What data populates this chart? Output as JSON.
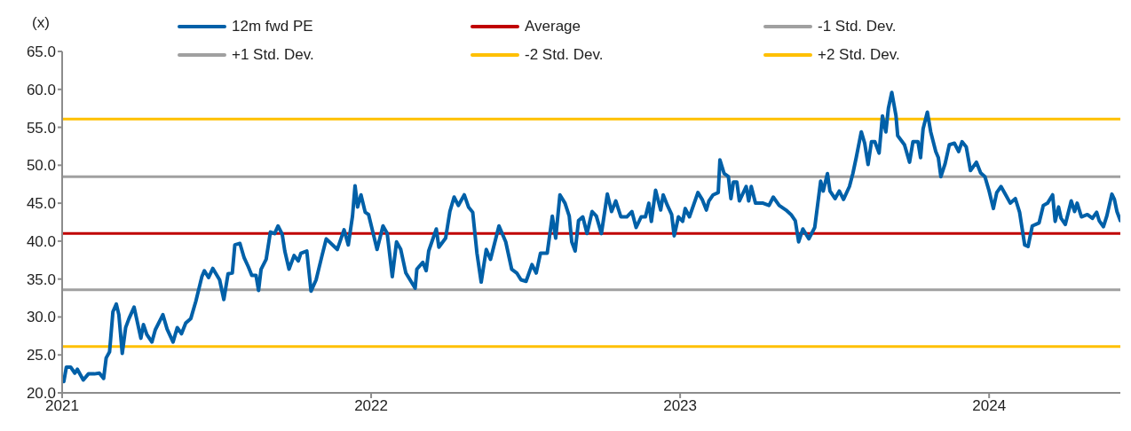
{
  "chart_data": {
    "type": "line",
    "ylabel": "(x)",
    "legend": "top",
    "xlim": [
      "2021-01-01",
      "2024-06-04"
    ],
    "xticks": [
      "2021",
      "2022",
      "2023",
      "2024"
    ],
    "ylim": [
      20,
      65
    ],
    "yticks": [
      {
        "value": 20,
        "label": "20.0"
      },
      {
        "value": 25,
        "label": "25.0"
      },
      {
        "value": 30,
        "label": "30.0"
      },
      {
        "value": 35,
        "label": "35.0"
      },
      {
        "value": 40,
        "label": "40.0"
      },
      {
        "value": 45,
        "label": "45.0"
      },
      {
        "value": 50,
        "label": "50.0"
      },
      {
        "value": 55,
        "label": "55.0"
      },
      {
        "value": 60,
        "label": "60.0"
      },
      {
        "value": 65,
        "label": "65.0"
      }
    ],
    "series": [
      {
        "name": "12m fwd PE",
        "color": "#0060a8",
        "x": [
          "2021-01-03",
          "2021-01-06",
          "2021-01-11",
          "2021-01-16",
          "2021-01-19",
          "2021-01-26",
          "2021-02-01",
          "2021-02-08",
          "2021-02-14",
          "2021-02-19",
          "2021-02-22",
          "2021-02-26",
          "2021-03-02",
          "2021-03-06",
          "2021-03-09",
          "2021-03-13",
          "2021-03-17",
          "2021-03-21",
          "2021-03-27",
          "2021-04-04",
          "2021-04-07",
          "2021-04-11",
          "2021-04-17",
          "2021-04-21",
          "2021-04-30",
          "2021-05-05",
          "2021-05-12",
          "2021-05-17",
          "2021-05-22",
          "2021-05-27",
          "2021-06-02",
          "2021-06-08",
          "2021-06-15",
          "2021-06-18",
          "2021-06-23",
          "2021-06-28",
          "2021-07-06",
          "2021-07-11",
          "2021-07-16",
          "2021-07-21",
          "2021-07-24",
          "2021-07-30",
          "2021-08-04",
          "2021-08-09",
          "2021-08-13",
          "2021-08-18",
          "2021-08-21",
          "2021-08-24",
          "2021-08-30",
          "2021-09-04",
          "2021-09-09",
          "2021-09-13",
          "2021-09-18",
          "2021-09-21",
          "2021-09-26",
          "2021-10-02",
          "2021-10-07",
          "2021-10-10",
          "2021-10-17",
          "2021-10-22",
          "2021-10-28",
          "2021-11-04",
          "2021-11-09",
          "2021-11-22",
          "2021-11-30",
          "2021-12-05",
          "2021-12-10",
          "2021-12-13",
          "2021-12-16",
          "2021-12-20",
          "2021-12-25",
          "2021-12-29",
          "2022-01-03",
          "2022-01-08",
          "2022-01-15",
          "2022-01-20",
          "2022-01-26",
          "2022-01-31",
          "2022-02-05",
          "2022-02-11",
          "2022-02-22",
          "2022-02-24",
          "2022-03-03",
          "2022-03-07",
          "2022-03-10",
          "2022-03-19",
          "2022-03-22",
          "2022-03-30",
          "2022-04-04",
          "2022-04-09",
          "2022-04-14",
          "2022-04-21",
          "2022-04-26",
          "2022-05-01",
          "2022-05-06",
          "2022-05-11",
          "2022-05-17",
          "2022-05-22",
          "2022-06-01",
          "2022-06-09",
          "2022-06-16",
          "2022-06-22",
          "2022-06-27",
          "2022-07-03",
          "2022-07-10",
          "2022-07-15",
          "2022-07-20",
          "2022-07-28",
          "2022-08-03",
          "2022-08-07",
          "2022-08-12",
          "2022-08-18",
          "2022-08-23",
          "2022-08-26",
          "2022-08-30",
          "2022-09-03",
          "2022-09-08",
          "2022-09-13",
          "2022-09-19",
          "2022-09-24",
          "2022-09-30",
          "2022-10-07",
          "2022-10-12",
          "2022-10-17",
          "2022-10-23",
          "2022-10-30",
          "2022-11-05",
          "2022-11-10",
          "2022-11-16",
          "2022-11-21",
          "2022-11-25",
          "2022-11-28",
          "2022-12-03",
          "2022-12-09",
          "2022-12-12",
          "2022-12-17",
          "2022-12-22",
          "2022-12-25",
          "2022-12-30",
          "2023-01-04",
          "2023-01-07",
          "2023-01-12",
          "2023-01-22",
          "2023-01-27",
          "2023-02-01",
          "2023-02-04",
          "2023-02-09",
          "2023-02-15",
          "2023-02-17",
          "2023-02-22",
          "2023-02-27",
          "2023-03-02",
          "2023-03-05",
          "2023-03-09",
          "2023-03-12",
          "2023-03-20",
          "2023-03-23",
          "2023-03-26",
          "2023-03-31",
          "2023-04-09",
          "2023-04-16",
          "2023-04-21",
          "2023-04-28",
          "2023-05-06",
          "2023-05-12",
          "2023-05-17",
          "2023-05-21",
          "2023-05-26",
          "2023-06-02",
          "2023-06-09",
          "2023-06-16",
          "2023-06-19",
          "2023-06-24",
          "2023-06-27",
          "2023-07-03",
          "2023-07-08",
          "2023-07-13",
          "2023-07-20",
          "2023-07-24",
          "2023-07-28",
          "2023-08-03",
          "2023-08-07",
          "2023-08-11",
          "2023-08-15",
          "2023-08-19",
          "2023-08-24",
          "2023-08-28",
          "2023-09-01",
          "2023-09-04",
          "2023-09-08",
          "2023-09-13",
          "2023-09-15",
          "2023-09-23",
          "2023-09-29",
          "2023-10-03",
          "2023-10-09",
          "2023-10-12",
          "2023-10-15",
          "2023-10-20",
          "2023-10-24",
          "2023-10-30",
          "2023-11-02",
          "2023-11-05",
          "2023-11-10",
          "2023-11-15",
          "2023-11-21",
          "2023-11-26",
          "2023-11-30",
          "2023-12-05",
          "2023-12-10",
          "2023-12-17",
          "2023-12-22",
          "2023-12-27",
          "2024-01-01",
          "2024-01-06",
          "2024-01-10",
          "2024-01-15",
          "2024-01-20",
          "2024-01-26",
          "2024-02-01",
          "2024-02-06",
          "2024-02-12",
          "2024-02-16",
          "2024-02-21",
          "2024-02-29",
          "2024-03-05",
          "2024-03-10",
          "2024-03-16",
          "2024-03-19",
          "2024-03-23",
          "2024-03-26",
          "2024-03-31",
          "2024-04-07",
          "2024-04-11",
          "2024-04-14",
          "2024-04-19",
          "2024-04-26",
          "2024-05-02",
          "2024-05-07",
          "2024-05-10",
          "2024-05-15",
          "2024-05-19",
          "2024-05-25",
          "2024-05-28",
          "2024-05-31",
          "2024-06-04"
        ],
        "values": [
          21.5,
          23.4,
          23.4,
          22.6,
          23.1,
          21.7,
          22.5,
          22.5,
          22.6,
          21.9,
          24.6,
          25.4,
          30.7,
          31.7,
          30.3,
          25.2,
          28.6,
          29.8,
          31.3,
          27.2,
          29.0,
          27.7,
          26.7,
          28.3,
          30.3,
          28.4,
          26.7,
          28.6,
          27.8,
          29.2,
          29.8,
          32.1,
          35.3,
          36.1,
          35.2,
          36.4,
          34.9,
          32.3,
          35.7,
          35.8,
          39.5,
          39.7,
          37.8,
          36.6,
          35.5,
          35.5,
          33.5,
          36.3,
          37.6,
          41.2,
          41.0,
          42.0,
          40.9,
          38.7,
          36.3,
          38.1,
          37.4,
          38.4,
          38.7,
          33.4,
          34.9,
          38.1,
          40.3,
          38.9,
          41.5,
          39.5,
          43.3,
          47.3,
          44.5,
          46.1,
          43.8,
          43.5,
          41.2,
          38.9,
          42.0,
          41.0,
          35.3,
          39.9,
          38.9,
          35.8,
          33.8,
          36.3,
          37.2,
          36.1,
          38.7,
          41.6,
          39.2,
          40.4,
          43.9,
          45.8,
          44.7,
          46.1,
          44.5,
          43.8,
          38.4,
          34.6,
          38.9,
          37.6,
          42.0,
          39.9,
          36.3,
          35.8,
          34.9,
          34.7,
          36.9,
          35.8,
          38.4,
          38.4,
          43.3,
          40.4,
          46.1,
          45.0,
          43.3,
          39.9,
          38.7,
          42.7,
          43.2,
          41.0,
          43.9,
          43.3,
          41.0,
          46.2,
          43.9,
          45.3,
          43.2,
          43.2,
          43.9,
          41.8,
          43.2,
          43.2,
          45.0,
          42.6,
          46.7,
          44.1,
          46.1,
          44.7,
          43.5,
          40.7,
          43.2,
          42.6,
          44.3,
          43.2,
          46.4,
          45.5,
          44.1,
          45.3,
          46.1,
          46.4,
          50.7,
          48.9,
          48.5,
          45.6,
          47.8,
          47.8,
          45.3,
          47.2,
          45.3,
          47.2,
          45.0,
          45.0,
          44.7,
          45.8,
          44.7,
          44.1,
          43.5,
          42.7,
          39.9,
          41.6,
          40.3,
          41.8,
          47.9,
          46.6,
          48.9,
          46.6,
          45.6,
          46.6,
          45.5,
          47.2,
          48.9,
          51.0,
          54.4,
          52.9,
          50.1,
          53.1,
          53.1,
          51.6,
          56.5,
          54.4,
          57.5,
          59.6,
          56.5,
          53.9,
          52.7,
          50.4,
          53.1,
          53.1,
          51.0,
          54.8,
          57.0,
          54.4,
          51.8,
          51.0,
          48.5,
          50.2,
          52.7,
          52.9,
          51.8,
          53.1,
          52.4,
          49.3,
          50.4,
          49.0,
          48.5,
          46.6,
          44.3,
          46.4,
          47.2,
          46.2,
          45.0,
          45.6,
          43.8,
          39.5,
          39.3,
          42.0,
          42.4,
          44.7,
          45.0,
          46.1,
          42.6,
          44.5,
          43.0,
          42.2,
          45.3,
          43.9,
          45.0,
          43.2,
          43.5,
          43.0,
          43.8,
          42.7,
          41.9,
          43.3,
          46.2,
          45.5,
          43.9,
          42.7
        ]
      },
      {
        "name": "Average",
        "color": "#c00000",
        "x": [
          "2021-01-01",
          "2024-06-04"
        ],
        "values": [
          41.0,
          41.0
        ]
      },
      {
        "name": "-1 Std. Dev.",
        "color": "#a0a0a0",
        "x": [
          "2021-01-01",
          "2024-06-04"
        ],
        "values": [
          33.6,
          33.6
        ]
      },
      {
        "name": "+1 Std. Dev.",
        "color": "#a0a0a0",
        "x": [
          "2021-01-01",
          "2024-06-04"
        ],
        "values": [
          48.5,
          48.5
        ]
      },
      {
        "name": "-2 Std. Dev.",
        "color": "#ffc000",
        "x": [
          "2021-01-01",
          "2024-06-04"
        ],
        "values": [
          26.1,
          26.1
        ]
      },
      {
        "name": "+2 Std. Dev.",
        "color": "#ffc000",
        "x": [
          "2021-01-01",
          "2024-06-04"
        ],
        "values": [
          56.1,
          56.1
        ]
      }
    ]
  }
}
